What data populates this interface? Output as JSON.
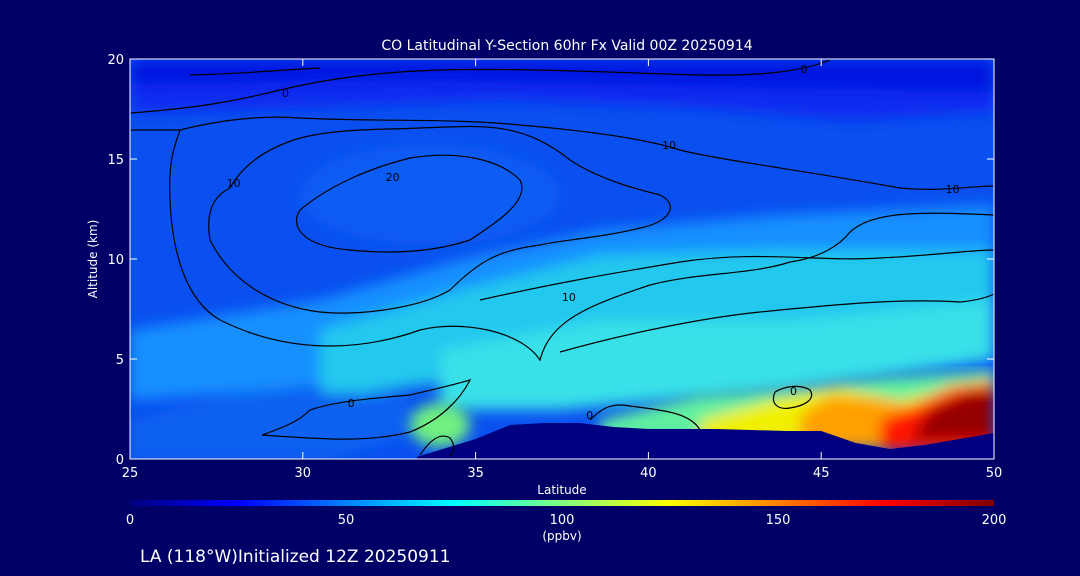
{
  "chart_data": {
    "type": "heatmap",
    "title": "CO Latitudinal Y-Section 60hr  Fx Valid 00Z 20250914",
    "xlabel": "Latitude",
    "ylabel": "Altitude (km)",
    "xlim": [
      25,
      50
    ],
    "ylim": [
      0,
      20
    ],
    "xticks": [
      25,
      30,
      35,
      40,
      45,
      50
    ],
    "yticks": [
      0,
      5,
      10,
      15,
      20
    ],
    "colorbar": {
      "label": "(ppbv)",
      "range": [
        0,
        200
      ],
      "ticks": [
        0,
        50,
        100,
        150,
        200
      ],
      "stops": [
        "#000080",
        "#0000ff",
        "#0080ff",
        "#00ffff",
        "#80ff80",
        "#ffff00",
        "#ff8000",
        "#ff0000",
        "#800000"
      ]
    },
    "contour_labels": [
      {
        "text": "0",
        "lat": 29.5,
        "alt": 18.3
      },
      {
        "text": "0",
        "lat": 44.5,
        "alt": 19.5
      },
      {
        "text": "10",
        "lat": 40.6,
        "alt": 15.7
      },
      {
        "text": "10",
        "lat": 28.0,
        "alt": 13.8
      },
      {
        "text": "20",
        "lat": 32.6,
        "alt": 14.1
      },
      {
        "text": "10",
        "lat": 37.7,
        "alt": 8.1
      },
      {
        "text": "10",
        "lat": 48.8,
        "alt": 13.5
      },
      {
        "text": "0",
        "lat": 31.4,
        "alt": 2.8
      },
      {
        "text": "0",
        "lat": 38.3,
        "alt": 2.2
      },
      {
        "text": "0",
        "lat": 44.2,
        "alt": 3.4
      }
    ],
    "terrain": [
      [
        33.3,
        0.1
      ],
      [
        35.0,
        1.0
      ],
      [
        36.0,
        1.7
      ],
      [
        37.0,
        1.8
      ],
      [
        38.0,
        1.8
      ],
      [
        39.0,
        1.6
      ],
      [
        40.0,
        1.5
      ],
      [
        41.0,
        1.5
      ],
      [
        42.0,
        1.5
      ],
      [
        44.0,
        1.4
      ],
      [
        45.0,
        1.4
      ],
      [
        46.0,
        0.8
      ],
      [
        47.0,
        0.5
      ],
      [
        48.0,
        0.7
      ],
      [
        50.0,
        1.3
      ]
    ]
  },
  "footer": {
    "text": "LA (118°W)Initialized 12Z 20250911"
  },
  "colors": {
    "background": "#000066",
    "terrain": "#000080",
    "contour": "#000000"
  }
}
